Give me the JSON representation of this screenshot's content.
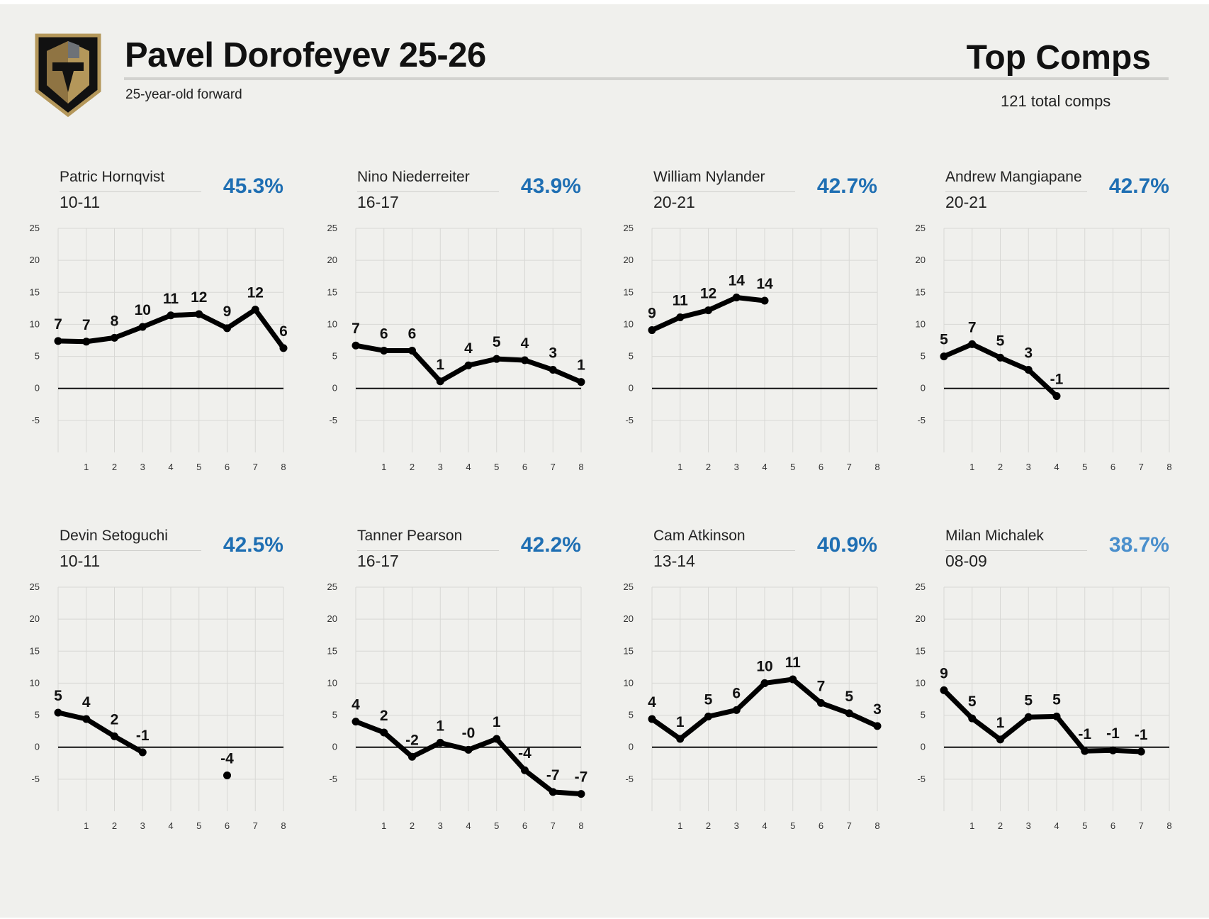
{
  "header": {
    "title": "Pavel Dorofeyev 25-26",
    "subtitle": "25-year-old forward",
    "comps_title": "Top Comps",
    "comps_count": "121 total comps",
    "logo": "vegas-golden-knights-logo"
  },
  "colors": {
    "background": "#f0f0ed",
    "pct_strong": "#1f6fb3",
    "pct_light": "#4a8fcc",
    "line": "#000000",
    "grid": "#d8d8d5"
  },
  "chart_data": [
    {
      "type": "line",
      "name": "Patric Hornqvist",
      "season": "10-11",
      "pct": "45.3%",
      "x": [
        0,
        1,
        2,
        3,
        4,
        5,
        6,
        7,
        8
      ],
      "y": [
        7.4,
        7.3,
        7.9,
        9.6,
        11.4,
        11.6,
        9.4,
        12.3,
        6.3
      ],
      "labels": [
        "7",
        "7",
        "8",
        "10",
        "11",
        "12",
        "9",
        "12",
        "6"
      ],
      "ylim": [
        -10,
        25
      ],
      "yticks": [
        -5,
        0,
        5,
        10,
        15,
        20,
        25
      ],
      "xticks": [
        1,
        2,
        3,
        4,
        5,
        6,
        7,
        8
      ],
      "grid": true
    },
    {
      "type": "line",
      "name": "Nino Niederreiter",
      "season": "16-17",
      "pct": "43.9%",
      "x": [
        0,
        1,
        2,
        3,
        4,
        5,
        6,
        7,
        8
      ],
      "y": [
        6.7,
        5.9,
        5.9,
        1.1,
        3.6,
        4.6,
        4.4,
        2.9,
        1.0
      ],
      "labels": [
        "7",
        "6",
        "6",
        "1",
        "4",
        "5",
        "4",
        "3",
        "1"
      ],
      "ylim": [
        -10,
        25
      ],
      "yticks": [
        -5,
        0,
        5,
        10,
        15,
        20,
        25
      ],
      "xticks": [
        1,
        2,
        3,
        4,
        5,
        6,
        7,
        8
      ],
      "grid": true
    },
    {
      "type": "line",
      "name": "William Nylander",
      "season": "20-21",
      "pct": "42.7%",
      "x": [
        0,
        1,
        2,
        3,
        4
      ],
      "y": [
        9.1,
        11.1,
        12.2,
        14.2,
        13.7
      ],
      "labels": [
        "9",
        "11",
        "12",
        "14",
        "14"
      ],
      "ylim": [
        -10,
        25
      ],
      "yticks": [
        -5,
        0,
        5,
        10,
        15,
        20,
        25
      ],
      "xticks": [
        1,
        2,
        3,
        4,
        5,
        6,
        7,
        8
      ],
      "grid": true
    },
    {
      "type": "line",
      "name": "Andrew Mangiapane",
      "season": "20-21",
      "pct": "42.7%",
      "x": [
        0,
        1,
        2,
        3,
        4
      ],
      "y": [
        5.0,
        6.9,
        4.8,
        2.9,
        -1.2
      ],
      "labels": [
        "5",
        "7",
        "5",
        "3",
        "-1"
      ],
      "ylim": [
        -10,
        25
      ],
      "yticks": [
        -5,
        0,
        5,
        10,
        15,
        20,
        25
      ],
      "xticks": [
        1,
        2,
        3,
        4,
        5,
        6,
        7,
        8
      ],
      "grid": true
    },
    {
      "type": "line",
      "name": "Devin Setoguchi",
      "season": "10-11",
      "pct": "42.5%",
      "x": [
        0,
        1,
        2,
        3,
        6
      ],
      "y": [
        5.4,
        4.4,
        1.7,
        -0.8,
        -4.4
      ],
      "labels": [
        "5",
        "4",
        "2",
        "-1",
        "-4"
      ],
      "segments": [
        [
          0,
          3
        ],
        [
          4,
          4
        ]
      ],
      "ylim": [
        -10,
        25
      ],
      "yticks": [
        -5,
        0,
        5,
        10,
        15,
        20,
        25
      ],
      "xticks": [
        1,
        2,
        3,
        4,
        5,
        6,
        7,
        8
      ],
      "grid": true
    },
    {
      "type": "line",
      "name": "Tanner Pearson",
      "season": "16-17",
      "pct": "42.2%",
      "x": [
        0,
        1,
        2,
        3,
        4,
        5,
        6,
        7,
        8
      ],
      "y": [
        4.0,
        2.3,
        -1.5,
        0.7,
        -0.4,
        1.3,
        -3.6,
        -7.0,
        -7.3
      ],
      "labels": [
        "4",
        "2",
        "-2",
        "1",
        "-0",
        "1",
        "-4",
        "-7",
        "-7"
      ],
      "ylim": [
        -10,
        25
      ],
      "yticks": [
        -5,
        0,
        5,
        10,
        15,
        20,
        25
      ],
      "xticks": [
        1,
        2,
        3,
        4,
        5,
        6,
        7,
        8
      ],
      "grid": true
    },
    {
      "type": "line",
      "name": "Cam Atkinson",
      "season": "13-14",
      "pct": "40.9%",
      "x": [
        0,
        1,
        2,
        3,
        4,
        5,
        6,
        7,
        8
      ],
      "y": [
        4.4,
        1.3,
        4.8,
        5.8,
        10.0,
        10.6,
        6.9,
        5.3,
        3.3
      ],
      "labels": [
        "4",
        "1",
        "5",
        "6",
        "10",
        "11",
        "7",
        "5",
        "3"
      ],
      "ylim": [
        -10,
        25
      ],
      "yticks": [
        -5,
        0,
        5,
        10,
        15,
        20,
        25
      ],
      "xticks": [
        1,
        2,
        3,
        4,
        5,
        6,
        7,
        8
      ],
      "grid": true
    },
    {
      "type": "line",
      "name": "Milan Michalek",
      "season": "08-09",
      "pct": "38.7%",
      "pct_color": "light",
      "x": [
        0,
        1,
        2,
        3,
        4,
        5,
        6,
        7
      ],
      "y": [
        8.9,
        4.5,
        1.2,
        4.7,
        4.8,
        -0.6,
        -0.5,
        -0.7
      ],
      "labels": [
        "9",
        "5",
        "1",
        "5",
        "5",
        "-1",
        "-1",
        "-1"
      ],
      "ylim": [
        -10,
        25
      ],
      "yticks": [
        -5,
        0,
        5,
        10,
        15,
        20,
        25
      ],
      "xticks": [
        1,
        2,
        3,
        4,
        5,
        6,
        7,
        8
      ],
      "grid": true
    }
  ]
}
